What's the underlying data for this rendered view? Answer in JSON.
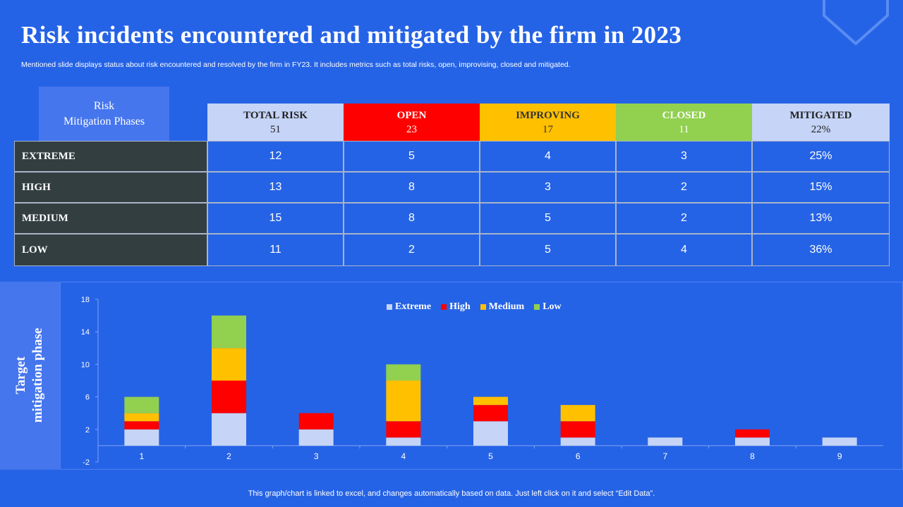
{
  "header": {
    "title": "Risk incidents encountered and mitigated by the firm in 2023",
    "subtitle": "Mentioned slide displays status about risk encountered and resolved by the firm in FY23. It includes metrics such as total risks, open, improvising, closed and mitigated."
  },
  "table": {
    "phase_label_line1": "Risk",
    "phase_label_line2": "Mitigation Phases",
    "columns": [
      {
        "label": "TOTAL RISK",
        "value": "51",
        "bg": "#c5d4f7",
        "fg": "#222222"
      },
      {
        "label": "OPEN",
        "value": "23",
        "bg": "#ff0000",
        "fg": "#ffffff"
      },
      {
        "label": "IMPROVING",
        "value": "17",
        "bg": "#ffc000",
        "fg": "#333333"
      },
      {
        "label": "CLOSED",
        "value": "11",
        "bg": "#92d050",
        "fg": "#ffffff"
      },
      {
        "label": "MITIGATED",
        "value": "22%",
        "bg": "#c5d4f7",
        "fg": "#222222"
      }
    ],
    "rows": [
      {
        "label": "EXTREME",
        "cells": [
          "12",
          "5",
          "4",
          "3",
          "25%"
        ]
      },
      {
        "label": "HIGH",
        "cells": [
          "13",
          "8",
          "3",
          "2",
          "15%"
        ]
      },
      {
        "label": "MEDIUM",
        "cells": [
          "15",
          "8",
          "5",
          "2",
          "13%"
        ]
      },
      {
        "label": "LOW",
        "cells": [
          "11",
          "2",
          "5",
          "4",
          "36%"
        ]
      }
    ]
  },
  "side_label": {
    "line1": "Target",
    "line2": "mitigation phase"
  },
  "chart_data": {
    "type": "bar",
    "stacked": true,
    "categories": [
      "1",
      "2",
      "3",
      "4",
      "5",
      "6",
      "7",
      "8",
      "9"
    ],
    "series": [
      {
        "name": "Extreme",
        "color": "#c5d4f7",
        "values": [
          2,
          4,
          2,
          1,
          3,
          1,
          1,
          1,
          1
        ]
      },
      {
        "name": "High",
        "color": "#ff0000",
        "values": [
          1,
          4,
          2,
          2,
          2,
          2,
          0,
          1,
          0
        ]
      },
      {
        "name": "Medium",
        "color": "#ffc000",
        "values": [
          1,
          4,
          0,
          5,
          1,
          2,
          0,
          0,
          0
        ]
      },
      {
        "name": "Low",
        "color": "#92d050",
        "values": [
          2,
          4,
          0,
          2,
          0,
          0,
          0,
          0,
          0
        ]
      }
    ],
    "yticks": [
      "18",
      "14",
      "10",
      "6",
      "2",
      "-2"
    ],
    "ylim": [
      -2,
      18
    ],
    "legend": "top"
  },
  "footer": "This graph/chart is linked to excel, and changes automatically based on data. Just left click on it and select “Edit Data”."
}
